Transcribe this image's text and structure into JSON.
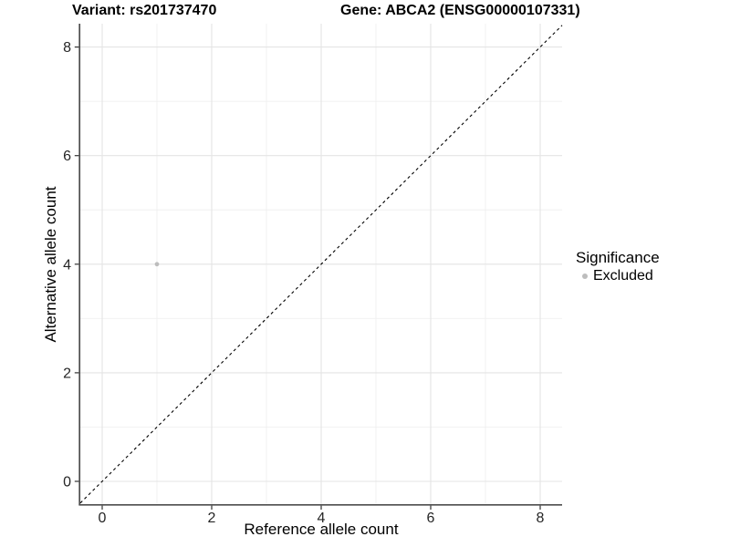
{
  "chart_data": {
    "type": "scatter",
    "title_left": "Variant: rs201737470",
    "title_right": "Gene: ABCA2 (ENSG00000107331)",
    "xlabel": "Reference allele count",
    "ylabel": "Alternative allele count",
    "xlim": [
      -0.4,
      8.4
    ],
    "ylim": [
      -0.42,
      8.43
    ],
    "x_ticks": [
      0,
      2,
      4,
      6,
      8
    ],
    "y_ticks": [
      0,
      2,
      4,
      6,
      8
    ],
    "x_minor_ticks": [
      1,
      3,
      5,
      7
    ],
    "y_minor_ticks": [
      1,
      3,
      5,
      7
    ],
    "grid": true,
    "series": [
      {
        "name": "Excluded",
        "marker": "circle",
        "color": "#bdbdbd",
        "points": [
          {
            "x": 1,
            "y": 4
          }
        ]
      }
    ],
    "reference_line": {
      "type": "abline",
      "slope": 1,
      "intercept": 0,
      "style": "dashed",
      "color": "#000000"
    },
    "legend": {
      "title": "Significance",
      "position": "right",
      "items": [
        {
          "label": "Excluded",
          "color": "#bdbdbd",
          "marker": "circle"
        }
      ]
    },
    "colors": {
      "background": "#ffffff",
      "grid_major": "#e4e4e4",
      "grid_minor": "#f0f0f0",
      "axis_line": "#4d4d4d",
      "tick_mark": "#333333",
      "tick_label": "#262626",
      "text": "#000000"
    }
  }
}
